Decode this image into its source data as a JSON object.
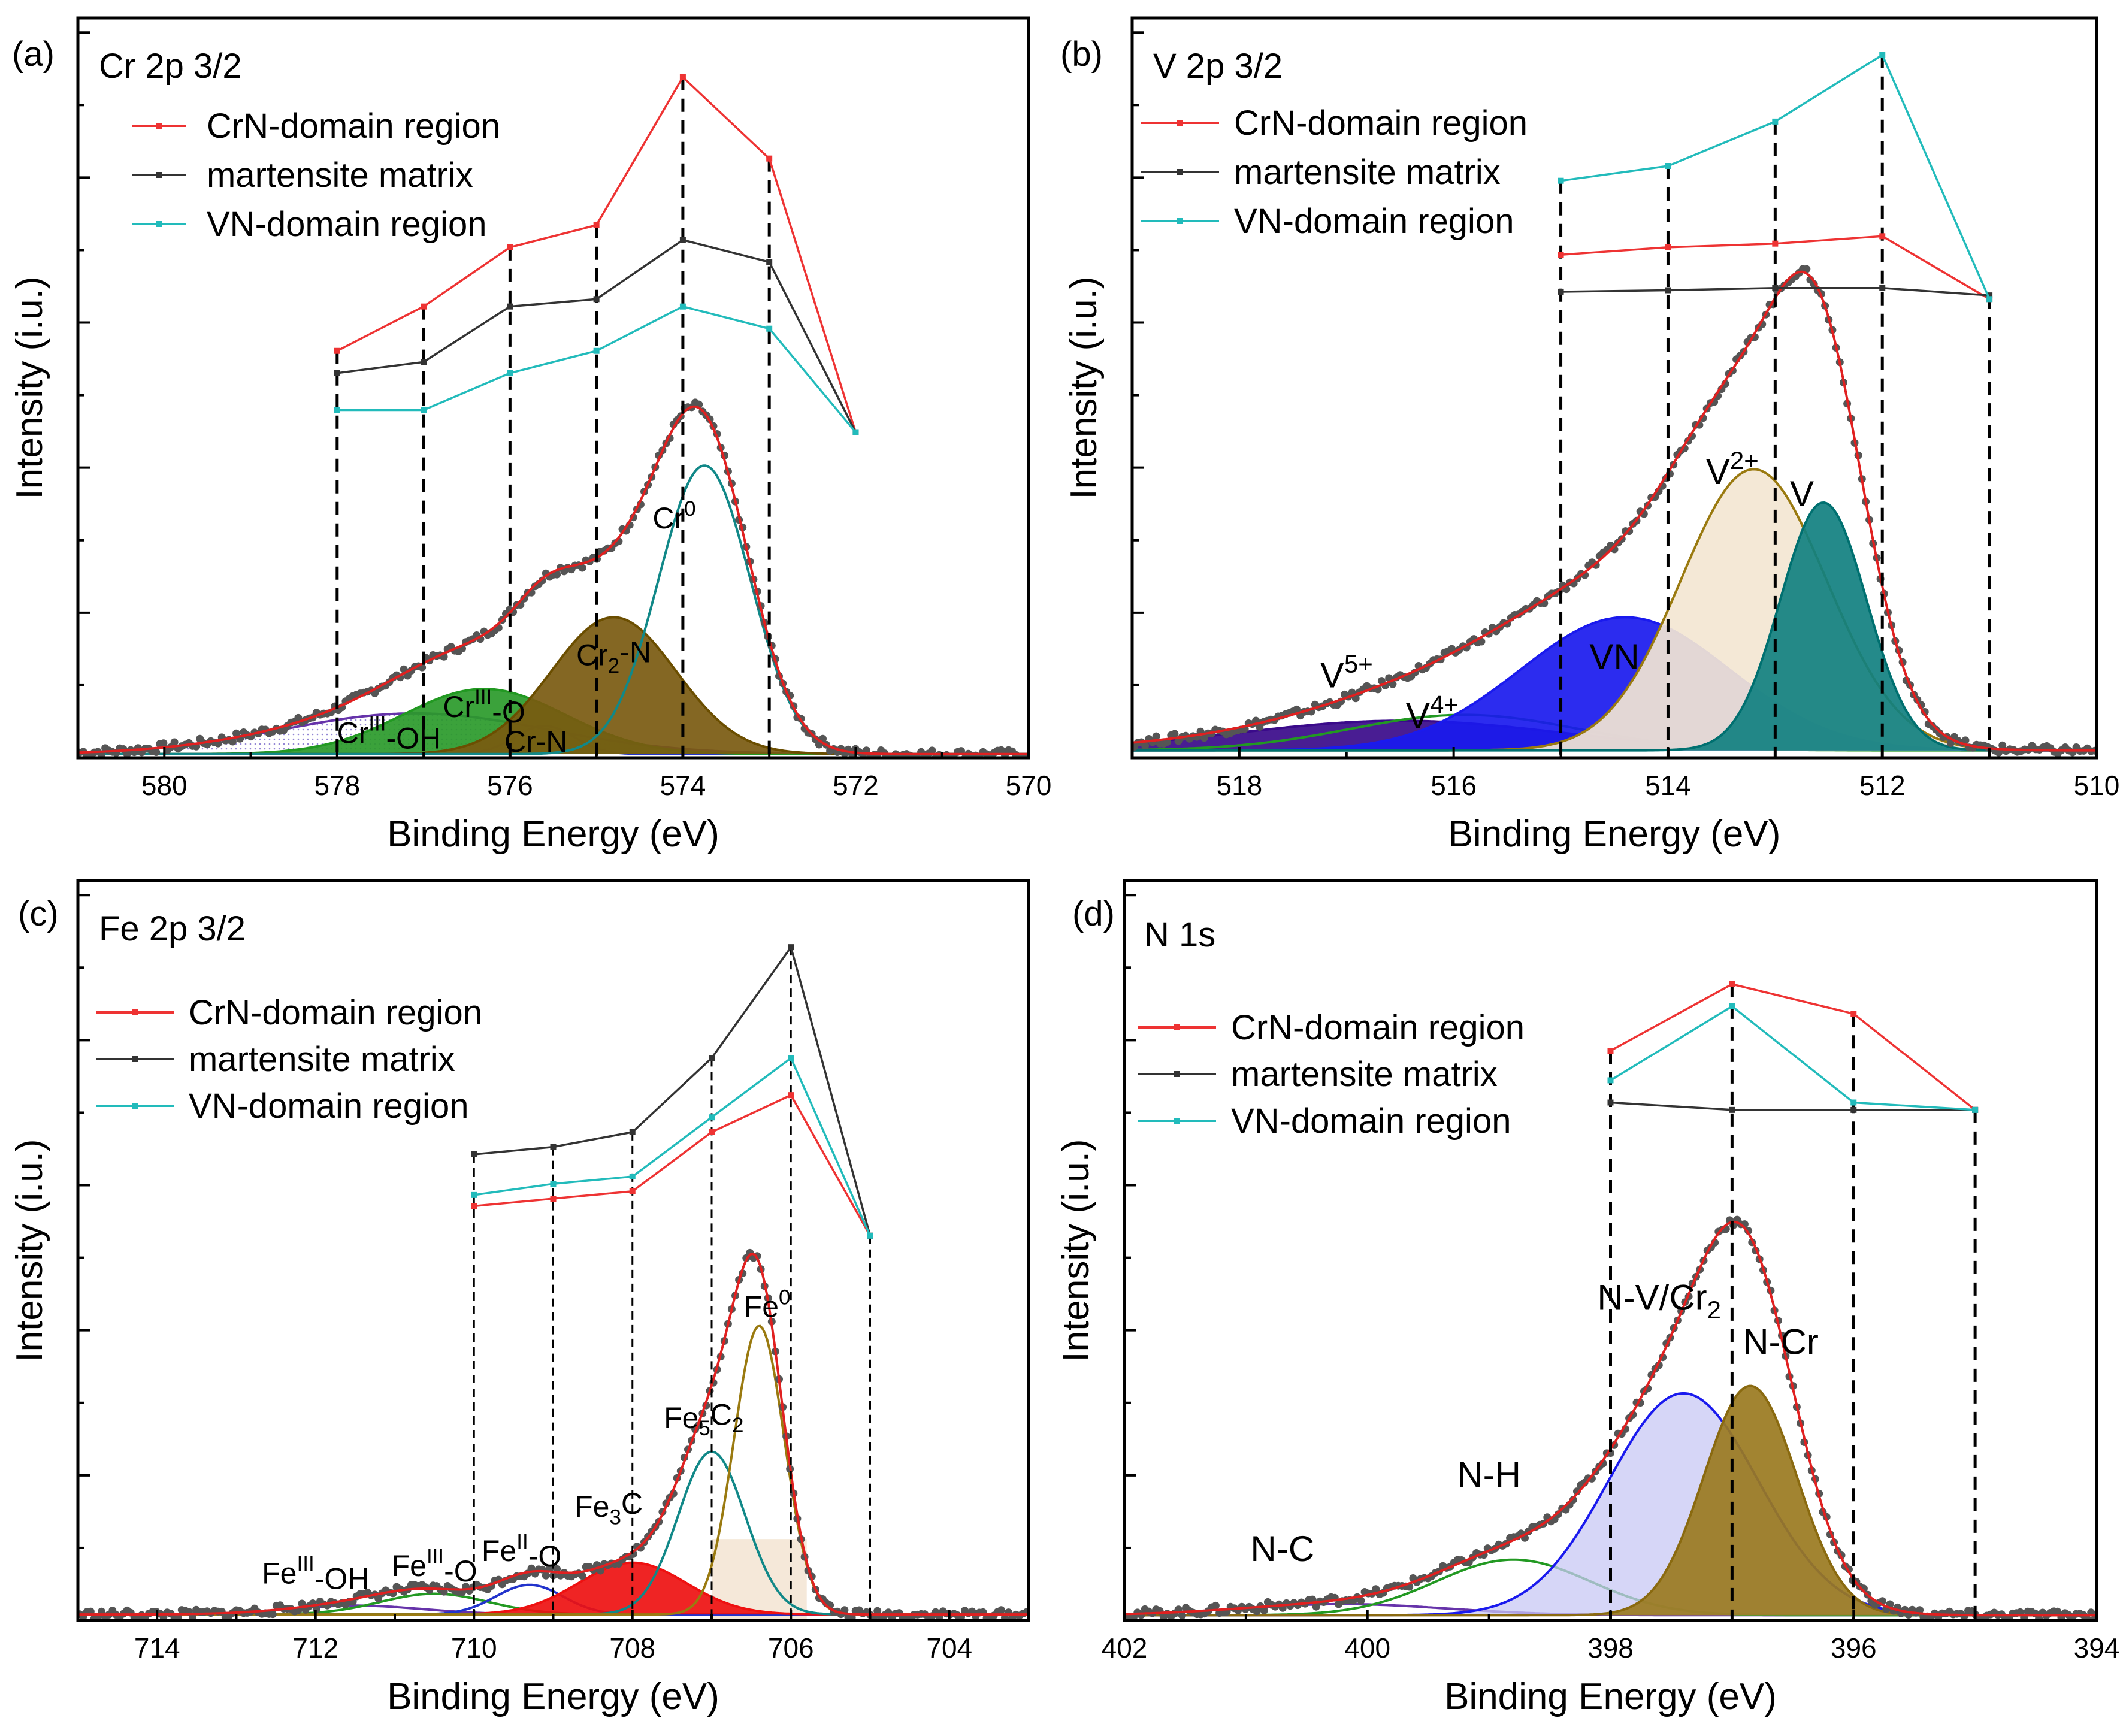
{
  "chart_data": [
    {
      "type": "line",
      "panel": "(a)",
      "title": "Cr 2p 3/2",
      "xlabel": "Binding Energy (eV)",
      "ylabel": "Intensity (i.u.)",
      "xlim": [
        581,
        570
      ],
      "xticks": [
        580,
        578,
        576,
        574,
        572,
        570
      ],
      "ylim": [
        0,
        10
      ],
      "legend_position": "top-left",
      "series": [
        {
          "name": "CrN-domain region",
          "color": "#ee3333",
          "x": [
            578,
            577,
            576,
            575,
            574,
            573,
            572
          ],
          "y": [
            5.5,
            6.1,
            6.9,
            7.2,
            9.2,
            8.1,
            4.4
          ]
        },
        {
          "name": "martensite matrix",
          "color": "#333333",
          "x": [
            578,
            577,
            576,
            575,
            574,
            573,
            572
          ],
          "y": [
            5.2,
            5.35,
            6.1,
            6.2,
            7.0,
            6.7,
            4.4
          ]
        },
        {
          "name": "VN-domain region",
          "color": "#22bbbb",
          "x": [
            578,
            577,
            576,
            575,
            574,
            573,
            572
          ],
          "y": [
            4.7,
            4.7,
            5.2,
            5.5,
            6.1,
            5.8,
            4.4
          ]
        }
      ],
      "dashed_lines_x": [
        578,
        577,
        576,
        575,
        574,
        573
      ],
      "fit_components": [
        {
          "label": "Cr0",
          "label_text": "Cr",
          "label_sup": "0",
          "center": 573.75,
          "height": 3.9,
          "fwhm": 1.25,
          "color": "#118888",
          "fill": "none",
          "lx": 574.1,
          "ly": 3.1
        },
        {
          "label": "Cr2-N",
          "label_text": "Cr",
          "label_sub": "2",
          "label_tail": "-N",
          "center": 574.8,
          "height": 1.85,
          "fwhm": 1.7,
          "color": "#6b4e00",
          "fill": "#7a5a10",
          "lx": 574.8,
          "ly": 1.25
        },
        {
          "label": "CrIII-O",
          "label_text": "Cr",
          "label_sup": "III",
          "label_tail": "-O",
          "center": 576.3,
          "height": 0.88,
          "fwhm": 2.2,
          "color": "#229922",
          "fill": "#2a9a2a",
          "lx": 576.3,
          "ly": 0.55
        },
        {
          "label": "CrIII-OH",
          "label_text": "Cr",
          "label_sup": "III",
          "label_tail": "-OH",
          "center": 577.1,
          "height": 0.55,
          "fwhm": 3.6,
          "color": "#6633aa",
          "fill": "#e6d8f0",
          "lx": 577.4,
          "ly": 0.2
        },
        {
          "label": "Cr-N",
          "label_text": "Cr-N",
          "center": 575.6,
          "height": 0.38,
          "fwhm": 0.8,
          "color": "#2233cc",
          "fill": "none",
          "lx": 575.7,
          "ly": 0.08
        }
      ],
      "baseline": 0.05
    },
    {
      "type": "line",
      "panel": "(b)",
      "title": "V 2p 3/2",
      "xlabel": "Binding Energy (eV)",
      "ylabel": "Intensity (i.u.)",
      "xlim": [
        519,
        510
      ],
      "xticks": [
        518,
        516,
        514,
        512,
        510
      ],
      "ylim": [
        0,
        10
      ],
      "legend_position": "top-left",
      "series": [
        {
          "name": "CrN-domain region",
          "color": "#ee3333",
          "x": [
            515,
            514,
            513,
            512,
            511
          ],
          "y": [
            6.8,
            6.9,
            6.95,
            7.05,
            6.2
          ]
        },
        {
          "name": "martensite matrix",
          "color": "#333333",
          "x": [
            515,
            514,
            513,
            512,
            511
          ],
          "y": [
            6.3,
            6.32,
            6.35,
            6.35,
            6.25
          ]
        },
        {
          "name": "VN-domain region",
          "color": "#22bbbb",
          "x": [
            515,
            514,
            513,
            512,
            511
          ],
          "y": [
            7.8,
            8.0,
            8.6,
            9.5,
            6.2
          ]
        }
      ],
      "dashed_lines_x": [
        515,
        514,
        513,
        512,
        511
      ],
      "fit_components": [
        {
          "label": "V",
          "label_text": "V",
          "center": 512.55,
          "height": 3.35,
          "fwhm": 0.95,
          "color": "#007070",
          "fill": "#118080",
          "lx": 512.75,
          "ly": 3.4
        },
        {
          "label": "V2+",
          "label_text": "V",
          "label_sup": "2+",
          "center": 513.2,
          "height": 3.8,
          "fwhm": 1.6,
          "color": "#9a7a10",
          "fill": "#f3e6d2",
          "lx": 513.4,
          "ly": 3.7
        },
        {
          "label": "VN",
          "label_text": "VN",
          "center": 514.4,
          "height": 1.8,
          "fwhm": 2.3,
          "color": "#1a1aee",
          "fill": "#1a1aee",
          "lx": 514.5,
          "ly": 1.2
        },
        {
          "label": "V4+",
          "label_text": "V",
          "label_sup": "4+",
          "center": 515.9,
          "height": 0.48,
          "fwhm": 2.5,
          "color": "#229922",
          "fill": "none",
          "lx": 516.2,
          "ly": 0.4
        },
        {
          "label": "V5+",
          "label_text": "V",
          "label_sup": "5+",
          "center": 516.5,
          "height": 0.4,
          "fwhm": 3.5,
          "color": "#3a0a8a",
          "fill": "#3a0a8a",
          "lx": 517.0,
          "ly": 0.95
        }
      ],
      "baseline": 0.1
    },
    {
      "type": "line",
      "panel": "(c)",
      "title": "Fe 2p 3/2",
      "xlabel": "Binding Energy (eV)",
      "ylabel": "Intensity (i.u.)",
      "xlim": [
        715,
        703
      ],
      "xticks": [
        714,
        712,
        710,
        708,
        706,
        704
      ],
      "ylim": [
        0,
        10
      ],
      "legend_position": "top-left",
      "series": [
        {
          "name": "CrN-domain region",
          "color": "#ee3333",
          "x": [
            710,
            709,
            708,
            707,
            706,
            705
          ],
          "y": [
            5.6,
            5.7,
            5.8,
            6.6,
            7.1,
            5.2
          ]
        },
        {
          "name": "martensite matrix",
          "color": "#333333",
          "x": [
            710,
            709,
            708,
            707,
            706,
            705
          ],
          "y": [
            6.3,
            6.4,
            6.6,
            7.6,
            9.1,
            5.2
          ]
        },
        {
          "name": "VN-domain region",
          "color": "#22bbbb",
          "x": [
            710,
            709,
            708,
            707,
            706,
            705
          ],
          "y": [
            5.75,
            5.9,
            6.0,
            6.8,
            7.6,
            5.2
          ]
        }
      ],
      "dashed_lines_x": [
        710,
        709,
        708,
        707,
        706,
        705
      ],
      "fit_components": [
        {
          "label": "Fe0",
          "label_text": "Fe",
          "label_sup": "0",
          "center": 706.4,
          "height": 3.9,
          "fwhm": 0.75,
          "color": "#9a7a10",
          "fill": "none",
          "lx": 706.3,
          "ly": 4.1
        },
        {
          "label": "Fe5C2",
          "label_text": "Fe",
          "label_sub": "5",
          "label_tail": "C",
          "label_sub2": "2",
          "center": 707.0,
          "height": 2.2,
          "fwhm": 1.0,
          "color": "#118888",
          "fill": "none",
          "lx": 707.1,
          "ly": 2.6
        },
        {
          "label": "Fe3C",
          "label_text": "Fe",
          "label_sub": "3",
          "label_tail": "C",
          "center": 708.0,
          "height": 0.7,
          "fwhm": 1.6,
          "color": "#ee1111",
          "fill": "#ee1111",
          "lx": 708.3,
          "ly": 1.4
        },
        {
          "label": "FeII-O",
          "label_text": "Fe",
          "label_sup": "II",
          "label_tail": "-O",
          "center": 709.3,
          "height": 0.4,
          "fwhm": 1.0,
          "color": "#2233cc",
          "fill": "none",
          "lx": 709.4,
          "ly": 0.8
        },
        {
          "label": "FeIII-O",
          "label_text": "Fe",
          "label_sup": "III",
          "label_tail": "-O",
          "center": 710.5,
          "height": 0.28,
          "fwhm": 1.6,
          "color": "#229922",
          "fill": "none",
          "lx": 710.5,
          "ly": 0.6
        },
        {
          "label": "FeIII-OH",
          "label_text": "Fe",
          "label_sup": "III",
          "label_tail": "-OH",
          "center": 711.5,
          "height": 0.12,
          "fwhm": 2.0,
          "color": "#6633aa",
          "fill": "none",
          "lx": 712.0,
          "ly": 0.5
        }
      ],
      "shaded_band": {
        "from": 707.0,
        "to": 705.8,
        "height": 1.1,
        "color": "#f2e2cf"
      },
      "baseline": 0.08
    },
    {
      "type": "line",
      "panel": "(d)",
      "title": "N 1s",
      "xlabel": "Binding Energy (eV)",
      "ylabel": "Intensity (i.u.)",
      "xlim": [
        402,
        394
      ],
      "xticks": [
        402,
        400,
        398,
        396,
        394
      ],
      "ylim": [
        0,
        10
      ],
      "legend_position": "top-left",
      "series": [
        {
          "name": "CrN-domain region",
          "color": "#ee3333",
          "x": [
            398,
            397,
            396,
            395
          ],
          "y": [
            7.7,
            8.6,
            8.2,
            6.9
          ]
        },
        {
          "name": "martensite matrix",
          "color": "#333333",
          "x": [
            398,
            397,
            396,
            395
          ],
          "y": [
            7.0,
            6.9,
            6.9,
            6.9
          ]
        },
        {
          "name": "VN-domain region",
          "color": "#22bbbb",
          "x": [
            398,
            397,
            396,
            395
          ],
          "y": [
            7.3,
            8.3,
            7.0,
            6.9
          ]
        }
      ],
      "dashed_lines_x": [
        398,
        397,
        396,
        395
      ],
      "fit_components": [
        {
          "label": "N-Cr",
          "label_text": "N-Cr",
          "center": 396.85,
          "height": 3.1,
          "fwhm": 0.9,
          "color": "#8a6a10",
          "fill": "#9a7a20",
          "lx": 396.6,
          "ly": 3.6
        },
        {
          "label": "N-V/Cr2",
          "label_text": "N-V/Cr",
          "label_sub": "2",
          "center": 397.4,
          "height": 3.0,
          "fwhm": 1.45,
          "color": "#1a1aee",
          "fill": "#c8c8f4",
          "lx": 397.6,
          "ly": 4.2
        },
        {
          "label": "N-H",
          "label_text": "N-H",
          "center": 398.8,
          "height": 0.75,
          "fwhm": 1.5,
          "color": "#229922",
          "fill": "none",
          "lx": 399.0,
          "ly": 1.8
        },
        {
          "label": "N-C",
          "label_text": "N-C",
          "center": 400.2,
          "height": 0.15,
          "fwhm": 2.0,
          "color": "#6633aa",
          "fill": "none",
          "lx": 400.7,
          "ly": 0.8
        }
      ],
      "baseline": 0.07
    }
  ]
}
